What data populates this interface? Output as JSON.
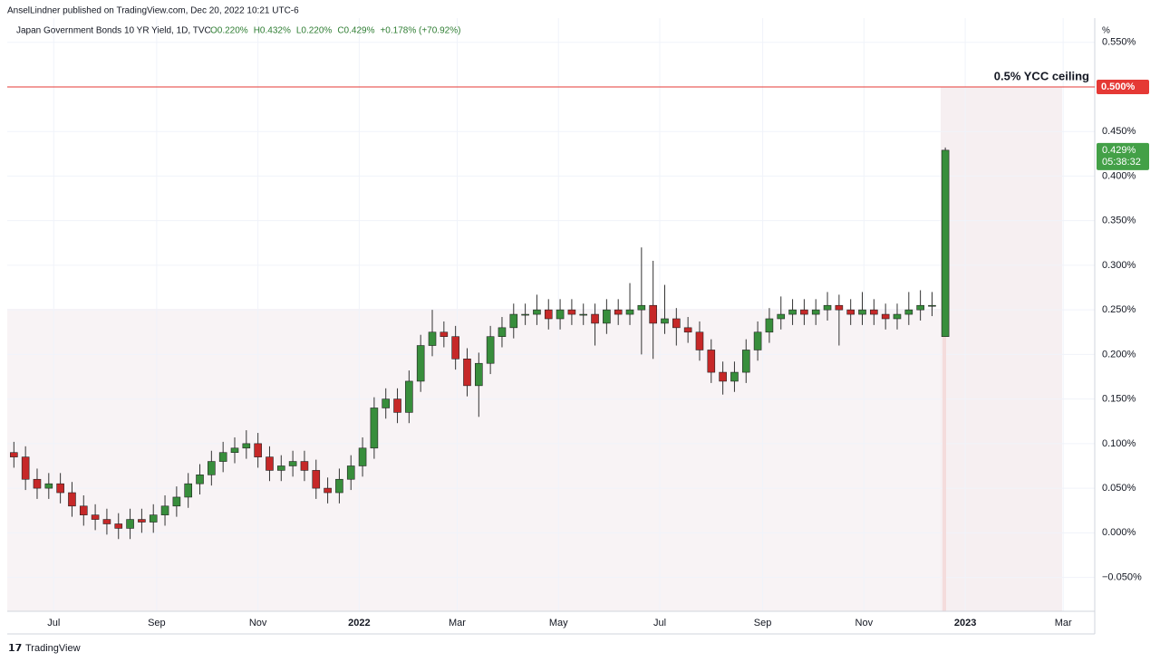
{
  "header": {
    "publisher": "AnselLindner published on TradingView.com, Dec 20, 2022 10:21 UTC-6",
    "footer": "TradingView"
  },
  "chart_data": {
    "type": "candlestick",
    "title": "Japan Government Bonds 10 YR Yield, 1D, TVC",
    "quote": [
      "O0.220%",
      "H0.432%",
      "L0.220%",
      "C0.429%",
      "+0.178% (+70.92%)"
    ],
    "y_unit": "%",
    "x": [
      "2021-06-07",
      "2021-06-14",
      "2021-06-21",
      "2021-06-28",
      "2021-07-05",
      "2021-07-12",
      "2021-07-19",
      "2021-07-26",
      "2021-08-02",
      "2021-08-09",
      "2021-08-16",
      "2021-08-23",
      "2021-08-30",
      "2021-09-06",
      "2021-09-13",
      "2021-09-20",
      "2021-09-27",
      "2021-10-04",
      "2021-10-11",
      "2021-10-18",
      "2021-10-25",
      "2021-11-01",
      "2021-11-08",
      "2021-11-15",
      "2021-11-22",
      "2021-11-29",
      "2021-12-06",
      "2021-12-13",
      "2021-12-20",
      "2021-12-27",
      "2022-01-03",
      "2022-01-10",
      "2022-01-17",
      "2022-01-24",
      "2022-01-31",
      "2022-02-07",
      "2022-02-14",
      "2022-02-21",
      "2022-02-28",
      "2022-03-07",
      "2022-03-14",
      "2022-03-21",
      "2022-03-28",
      "2022-04-04",
      "2022-04-11",
      "2022-04-18",
      "2022-04-25",
      "2022-05-02",
      "2022-05-09",
      "2022-05-16",
      "2022-05-23",
      "2022-05-30",
      "2022-06-06",
      "2022-06-13",
      "2022-06-20",
      "2022-06-27",
      "2022-07-04",
      "2022-07-11",
      "2022-07-18",
      "2022-07-25",
      "2022-08-01",
      "2022-08-08",
      "2022-08-15",
      "2022-08-22",
      "2022-08-29",
      "2022-09-05",
      "2022-09-12",
      "2022-09-19",
      "2022-09-26",
      "2022-10-03",
      "2022-10-10",
      "2022-10-17",
      "2022-10-24",
      "2022-10-31",
      "2022-11-07",
      "2022-11-14",
      "2022-11-21",
      "2022-11-28",
      "2022-12-05",
      "2022-12-12",
      "2022-12-20"
    ],
    "open": [
      0.09,
      0.085,
      0.06,
      0.05,
      0.055,
      0.045,
      0.03,
      0.02,
      0.015,
      0.01,
      0.005,
      0.015,
      0.012,
      0.02,
      0.03,
      0.04,
      0.055,
      0.065,
      0.08,
      0.09,
      0.095,
      0.1,
      0.085,
      0.07,
      0.075,
      0.08,
      0.07,
      0.05,
      0.045,
      0.06,
      0.075,
      0.095,
      0.14,
      0.15,
      0.135,
      0.17,
      0.21,
      0.225,
      0.22,
      0.195,
      0.165,
      0.19,
      0.22,
      0.23,
      0.245,
      0.245,
      0.25,
      0.24,
      0.25,
      0.245,
      0.245,
      0.235,
      0.25,
      0.245,
      0.25,
      0.255,
      0.235,
      0.24,
      0.23,
      0.225,
      0.205,
      0.18,
      0.17,
      0.18,
      0.205,
      0.225,
      0.24,
      0.245,
      0.25,
      0.245,
      0.25,
      0.255,
      0.25,
      0.245,
      0.25,
      0.245,
      0.24,
      0.245,
      0.25,
      0.255,
      0.22
    ],
    "high": [
      0.102,
      0.097,
      0.072,
      0.067,
      0.067,
      0.057,
      0.042,
      0.032,
      0.027,
      0.022,
      0.027,
      0.027,
      0.032,
      0.042,
      0.052,
      0.067,
      0.077,
      0.092,
      0.102,
      0.107,
      0.115,
      0.112,
      0.097,
      0.087,
      0.092,
      0.092,
      0.082,
      0.062,
      0.072,
      0.087,
      0.107,
      0.152,
      0.162,
      0.162,
      0.182,
      0.222,
      0.25,
      0.237,
      0.232,
      0.207,
      0.202,
      0.232,
      0.242,
      0.257,
      0.257,
      0.267,
      0.262,
      0.262,
      0.262,
      0.257,
      0.257,
      0.262,
      0.262,
      0.28,
      0.32,
      0.305,
      0.278,
      0.252,
      0.242,
      0.237,
      0.217,
      0.192,
      0.192,
      0.217,
      0.237,
      0.252,
      0.265,
      0.262,
      0.262,
      0.262,
      0.27,
      0.267,
      0.262,
      0.27,
      0.262,
      0.257,
      0.257,
      0.27,
      0.272,
      0.27,
      0.432
    ],
    "low": [
      0.073,
      0.048,
      0.038,
      0.038,
      0.033,
      0.018,
      0.008,
      0.003,
      -0.002,
      -0.007,
      -0.007,
      0,
      0,
      0.008,
      0.018,
      0.028,
      0.043,
      0.053,
      0.068,
      0.078,
      0.083,
      0.073,
      0.058,
      0.058,
      0.063,
      0.058,
      0.038,
      0.033,
      0.033,
      0.048,
      0.063,
      0.083,
      0.128,
      0.123,
      0.123,
      0.158,
      0.198,
      0.208,
      0.183,
      0.153,
      0.13,
      0.178,
      0.208,
      0.218,
      0.233,
      0.233,
      0.228,
      0.228,
      0.233,
      0.233,
      0.21,
      0.223,
      0.233,
      0.233,
      0.2,
      0.195,
      0.223,
      0.21,
      0.213,
      0.193,
      0.168,
      0.155,
      0.158,
      0.168,
      0.193,
      0.213,
      0.228,
      0.233,
      0.233,
      0.233,
      0.238,
      0.21,
      0.233,
      0.233,
      0.233,
      0.228,
      0.228,
      0.233,
      0.238,
      0.243,
      0.22
    ],
    "close": [
      0.085,
      0.06,
      0.05,
      0.055,
      0.045,
      0.03,
      0.02,
      0.015,
      0.01,
      0.005,
      0.015,
      0.012,
      0.02,
      0.03,
      0.04,
      0.055,
      0.065,
      0.08,
      0.09,
      0.095,
      0.1,
      0.085,
      0.07,
      0.075,
      0.08,
      0.07,
      0.05,
      0.045,
      0.06,
      0.075,
      0.095,
      0.14,
      0.15,
      0.135,
      0.17,
      0.21,
      0.225,
      0.22,
      0.195,
      0.165,
      0.19,
      0.22,
      0.23,
      0.245,
      0.245,
      0.25,
      0.24,
      0.25,
      0.245,
      0.245,
      0.235,
      0.25,
      0.245,
      0.25,
      0.255,
      0.235,
      0.24,
      0.23,
      0.225,
      0.205,
      0.18,
      0.17,
      0.18,
      0.205,
      0.225,
      0.24,
      0.245,
      0.25,
      0.245,
      0.25,
      0.255,
      0.25,
      0.245,
      0.25,
      0.245,
      0.24,
      0.245,
      0.25,
      0.255,
      0.255,
      0.429
    ],
    "up_color": "#388e3c",
    "down_color": "#c62828",
    "xlim": [
      "2021-06-03",
      "2023-03-20"
    ],
    "xticks": [
      {
        "value": "2021-07-01",
        "label": "Jul"
      },
      {
        "value": "2021-09-01",
        "label": "Sep"
      },
      {
        "value": "2021-11-01",
        "label": "Nov"
      },
      {
        "value": "2022-01-01",
        "label": "2022"
      },
      {
        "value": "2022-03-01",
        "label": "Mar"
      },
      {
        "value": "2022-05-01",
        "label": "May"
      },
      {
        "value": "2022-07-01",
        "label": "Jul"
      },
      {
        "value": "2022-09-01",
        "label": "Sep"
      },
      {
        "value": "2022-11-01",
        "label": "Nov"
      },
      {
        "value": "2023-01-01",
        "label": "2023"
      },
      {
        "value": "2023-03-01",
        "label": "Mar"
      }
    ],
    "ylim": [
      -0.088,
      0.569
    ],
    "yticks": [
      {
        "value": -0.05,
        "label": "−0.050%"
      },
      {
        "value": 0,
        "label": "0.000%"
      },
      {
        "value": 0.05,
        "label": "0.050%"
      },
      {
        "value": 0.1,
        "label": "0.100%"
      },
      {
        "value": 0.15,
        "label": "0.150%"
      },
      {
        "value": 0.2,
        "label": "0.200%"
      },
      {
        "value": 0.25,
        "label": "0.250%"
      },
      {
        "value": 0.3,
        "label": "0.300%"
      },
      {
        "value": 0.35,
        "label": "0.350%"
      },
      {
        "value": 0.4,
        "label": "0.400%"
      },
      {
        "value": 0.45,
        "label": "0.450%"
      },
      {
        "value": 0.5,
        "label": "0.500%"
      },
      {
        "value": 0.55,
        "label": "0.550%"
      }
    ],
    "grid": true,
    "ceiling": {
      "value": 0.5,
      "label": "0.500%",
      "text": "0.5% YCC ceiling",
      "color": "#e53935"
    },
    "last_price": {
      "value": 0.429,
      "label": "0.429%",
      "countdown": "05:38:32",
      "color": "#43a047"
    }
  }
}
